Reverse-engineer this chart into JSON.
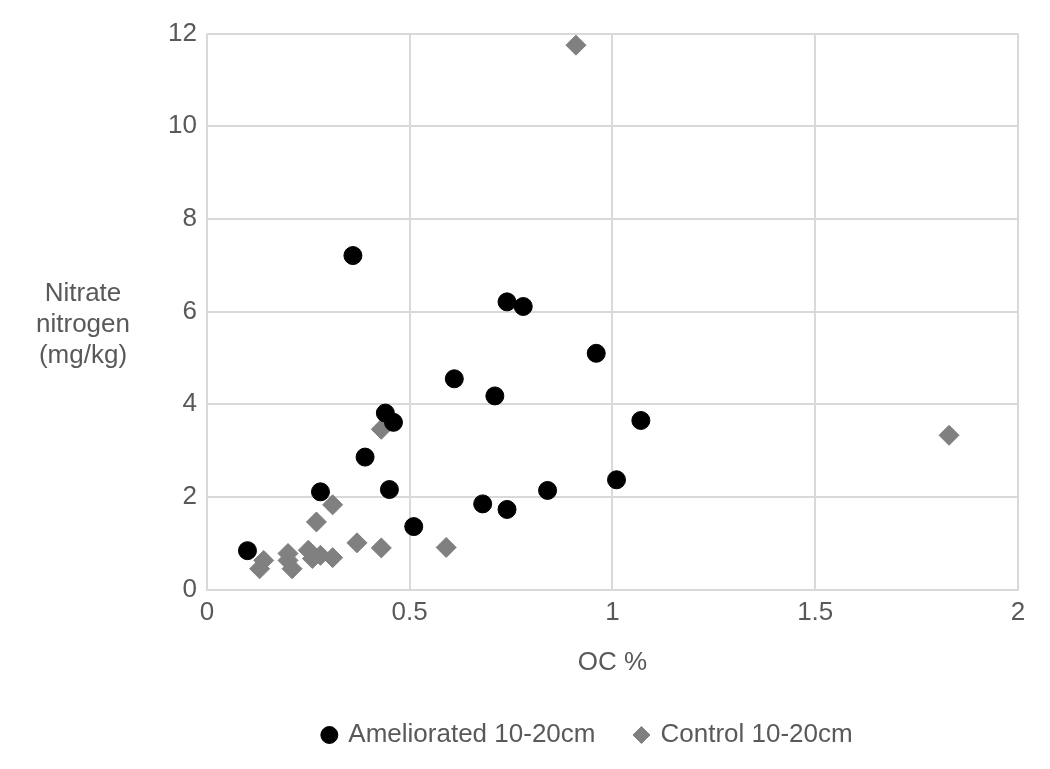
{
  "chart_data": {
    "type": "scatter",
    "xlabel": "OC %",
    "ylabel": "Nitrate nitrogen (mg/kg)",
    "xlim": [
      0,
      2
    ],
    "xticks": [
      0,
      0.5,
      1,
      1.5,
      2
    ],
    "ylim": [
      0,
      12
    ],
    "yticks": [
      0,
      2,
      4,
      6,
      8,
      10,
      12
    ],
    "grid": true,
    "legend": "bottom",
    "series": [
      {
        "name": "Ameliorated 10-20cm",
        "color": "#000000",
        "marker": "circle",
        "x": [
          0.1,
          0.28,
          0.39,
          0.44,
          0.46,
          0.45,
          0.51,
          0.68,
          0.74,
          0.84,
          1.01,
          0.71,
          0.36,
          0.74,
          0.78,
          0.61,
          0.96,
          1.07
        ],
        "values": [
          0.84,
          2.11,
          2.86,
          3.81,
          3.61,
          2.16,
          1.36,
          1.85,
          1.73,
          2.14,
          2.37,
          4.18,
          7.21,
          6.21,
          6.11,
          4.55,
          5.1,
          3.65
        ]
      },
      {
        "name": "Control 10-20cm",
        "color": "#808080",
        "marker": "diamond",
        "x": [
          0.14,
          0.13,
          0.2,
          0.21,
          0.2,
          0.25,
          0.26,
          0.28,
          0.31,
          0.27,
          0.31,
          0.37,
          0.43,
          0.43,
          0.59,
          0.91,
          1.83
        ],
        "values": [
          0.63,
          0.45,
          0.78,
          0.45,
          0.63,
          0.85,
          0.67,
          0.74,
          0.69,
          1.46,
          1.83,
          1.01,
          0.9,
          3.46,
          0.91,
          11.75,
          3.33
        ]
      }
    ]
  }
}
